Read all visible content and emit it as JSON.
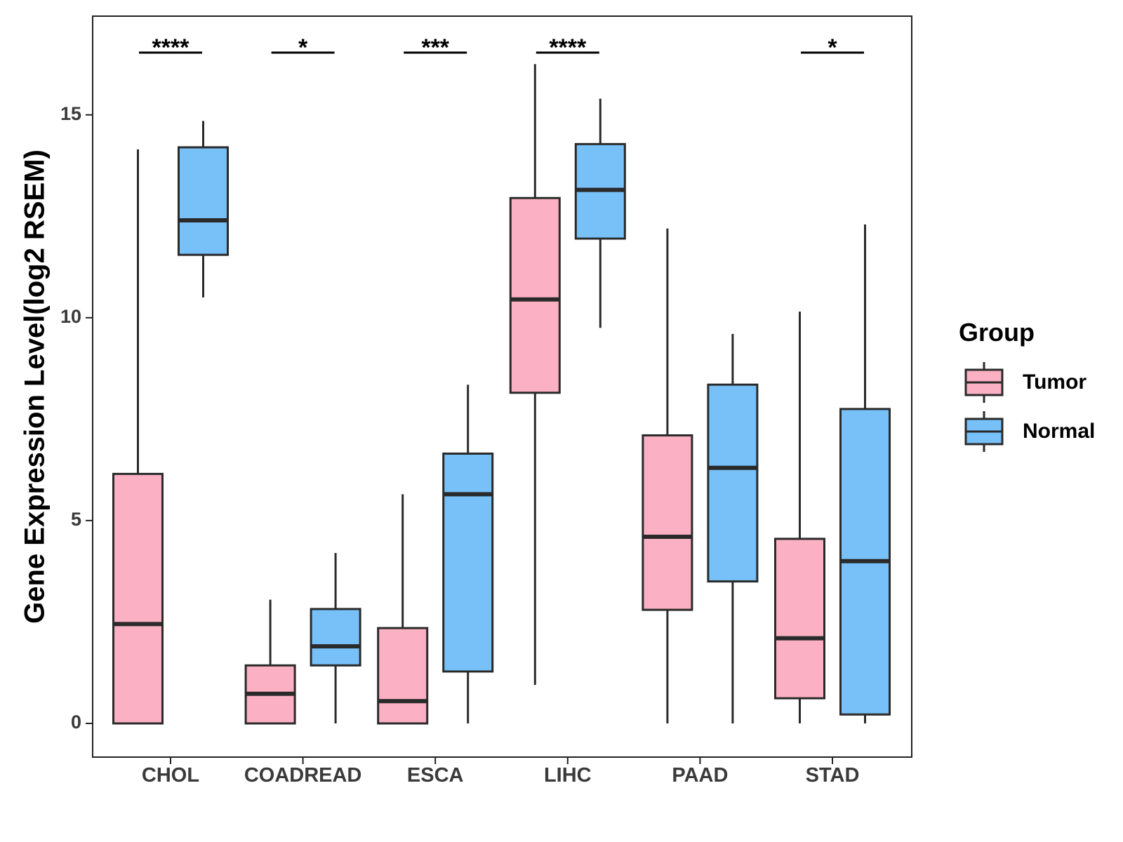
{
  "chart_data": {
    "type": "box",
    "title": "",
    "xlabel": "",
    "ylabel": "Gene Expression Level(log2 RSEM)",
    "ylim": [
      -0.8,
      17.4
    ],
    "yticks": [
      0,
      5,
      10,
      15
    ],
    "categories": [
      "CHOL",
      "COADREAD",
      "ESCA",
      "LIHC",
      "PAAD",
      "STAD"
    ],
    "legend": {
      "title": "Group",
      "position": "right",
      "entries": [
        {
          "name": "Tumor",
          "color": "#fbb1c3"
        },
        {
          "name": "Normal",
          "color": "#77c0f8"
        }
      ]
    },
    "series": [
      {
        "name": "Tumor",
        "color": "#fbb1c3",
        "boxes": [
          {
            "min": 0,
            "q1": 0,
            "median": 2.45,
            "q3": 6.15,
            "max": 14.15
          },
          {
            "min": 0,
            "q1": 0,
            "median": 0.73,
            "q3": 1.43,
            "max": 3.05
          },
          {
            "min": 0,
            "q1": 0,
            "median": 0.55,
            "q3": 2.35,
            "max": 5.65
          },
          {
            "min": 0.95,
            "q1": 8.15,
            "median": 10.45,
            "q3": 12.95,
            "max": 16.25
          },
          {
            "min": 0,
            "q1": 2.8,
            "median": 4.6,
            "q3": 7.1,
            "max": 12.2
          },
          {
            "min": 0,
            "q1": 0.62,
            "median": 2.1,
            "q3": 4.55,
            "max": 10.15
          }
        ]
      },
      {
        "name": "Normal",
        "color": "#77c0f8",
        "boxes": [
          {
            "min": 10.5,
            "q1": 11.55,
            "median": 12.4,
            "q3": 14.2,
            "max": 14.85
          },
          {
            "min": 0,
            "q1": 1.43,
            "median": 1.9,
            "q3": 2.82,
            "max": 4.2
          },
          {
            "min": 0,
            "q1": 1.28,
            "median": 5.65,
            "q3": 6.65,
            "max": 8.35
          },
          {
            "min": 9.75,
            "q1": 11.95,
            "median": 13.15,
            "q3": 14.28,
            "max": 15.4
          },
          {
            "min": 0,
            "q1": 3.5,
            "median": 6.3,
            "q3": 8.35,
            "max": 9.6
          },
          {
            "min": 0,
            "q1": 0.22,
            "median": 4.0,
            "q3": 7.75,
            "max": 12.3
          }
        ]
      }
    ],
    "significance": [
      {
        "category": "CHOL",
        "label": "****"
      },
      {
        "category": "COADREAD",
        "label": "*"
      },
      {
        "category": "ESCA",
        "label": "***"
      },
      {
        "category": "LIHC",
        "label": "****"
      },
      {
        "category": "STAD",
        "label": "*"
      }
    ]
  }
}
